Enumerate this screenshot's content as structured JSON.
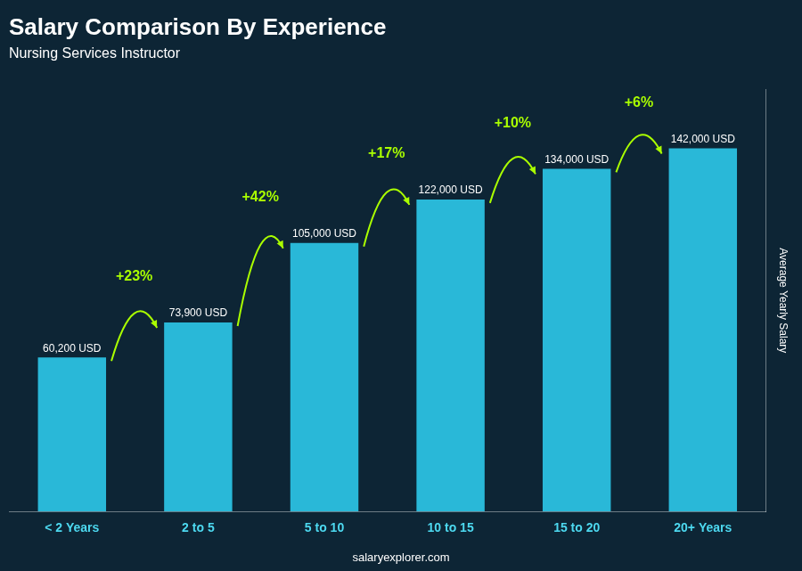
{
  "chart_data": {
    "type": "bar",
    "title": "Salary Comparison By Experience",
    "subtitle": "Nursing Services Instructor",
    "ylabel": "Average Yearly Salary",
    "footer": "salaryexplorer.com",
    "categories": [
      "< 2 Years",
      "2 to 5",
      "5 to 10",
      "10 to 15",
      "15 to 20",
      "20+ Years"
    ],
    "values": [
      60200,
      73900,
      105000,
      122000,
      134000,
      142000
    ],
    "value_labels": [
      "60,200 USD",
      "73,900 USD",
      "105,000 USD",
      "122,000 USD",
      "134,000 USD",
      "142,000 USD"
    ],
    "data_labels": true,
    "annotations": [
      "+23%",
      "+42%",
      "+17%",
      "+10%",
      "+6%"
    ],
    "color": "#29b8d8",
    "ylim": [
      0,
      165000
    ],
    "tick_labels": "x",
    "grid": false
  }
}
